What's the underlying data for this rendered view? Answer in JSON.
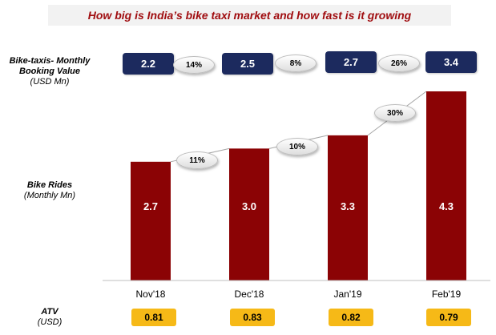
{
  "title": "How big is India’s bike taxi market and how fast is it growing",
  "colors": {
    "title": "#a00d10",
    "bar": "#8b0305",
    "booking_box": "#1c2a5e",
    "atv_box": "#f6b917"
  },
  "labels": {
    "booking_line1": "Bike-taxis- Monthly",
    "booking_line2": "Booking Value",
    "booking_unit": "(USD Mn)",
    "rides_title": "Bike Rides",
    "rides_unit": "(Monthly Mn)",
    "atv_title": "ATV",
    "atv_unit": "(USD)"
  },
  "booking": {
    "values": [
      "2.2",
      "2.5",
      "2.7",
      "3.4"
    ],
    "growth": [
      "14%",
      "8%",
      "26%"
    ]
  },
  "atv": {
    "values": [
      "0.81",
      "0.83",
      "0.82",
      "0.79"
    ]
  },
  "chart_data": {
    "type": "bar",
    "categories": [
      "Nov'18",
      "Dec'18",
      "Jan'19",
      "Feb'19"
    ],
    "series": [
      {
        "values": [
          2.7,
          3.0,
          3.3,
          4.3
        ]
      }
    ],
    "data_labels": [
      "2.7",
      "3.0",
      "3.3",
      "4.3"
    ],
    "growth_labels": [
      "11%",
      "10%",
      "30%"
    ],
    "ylim": [
      0,
      4.3
    ]
  }
}
